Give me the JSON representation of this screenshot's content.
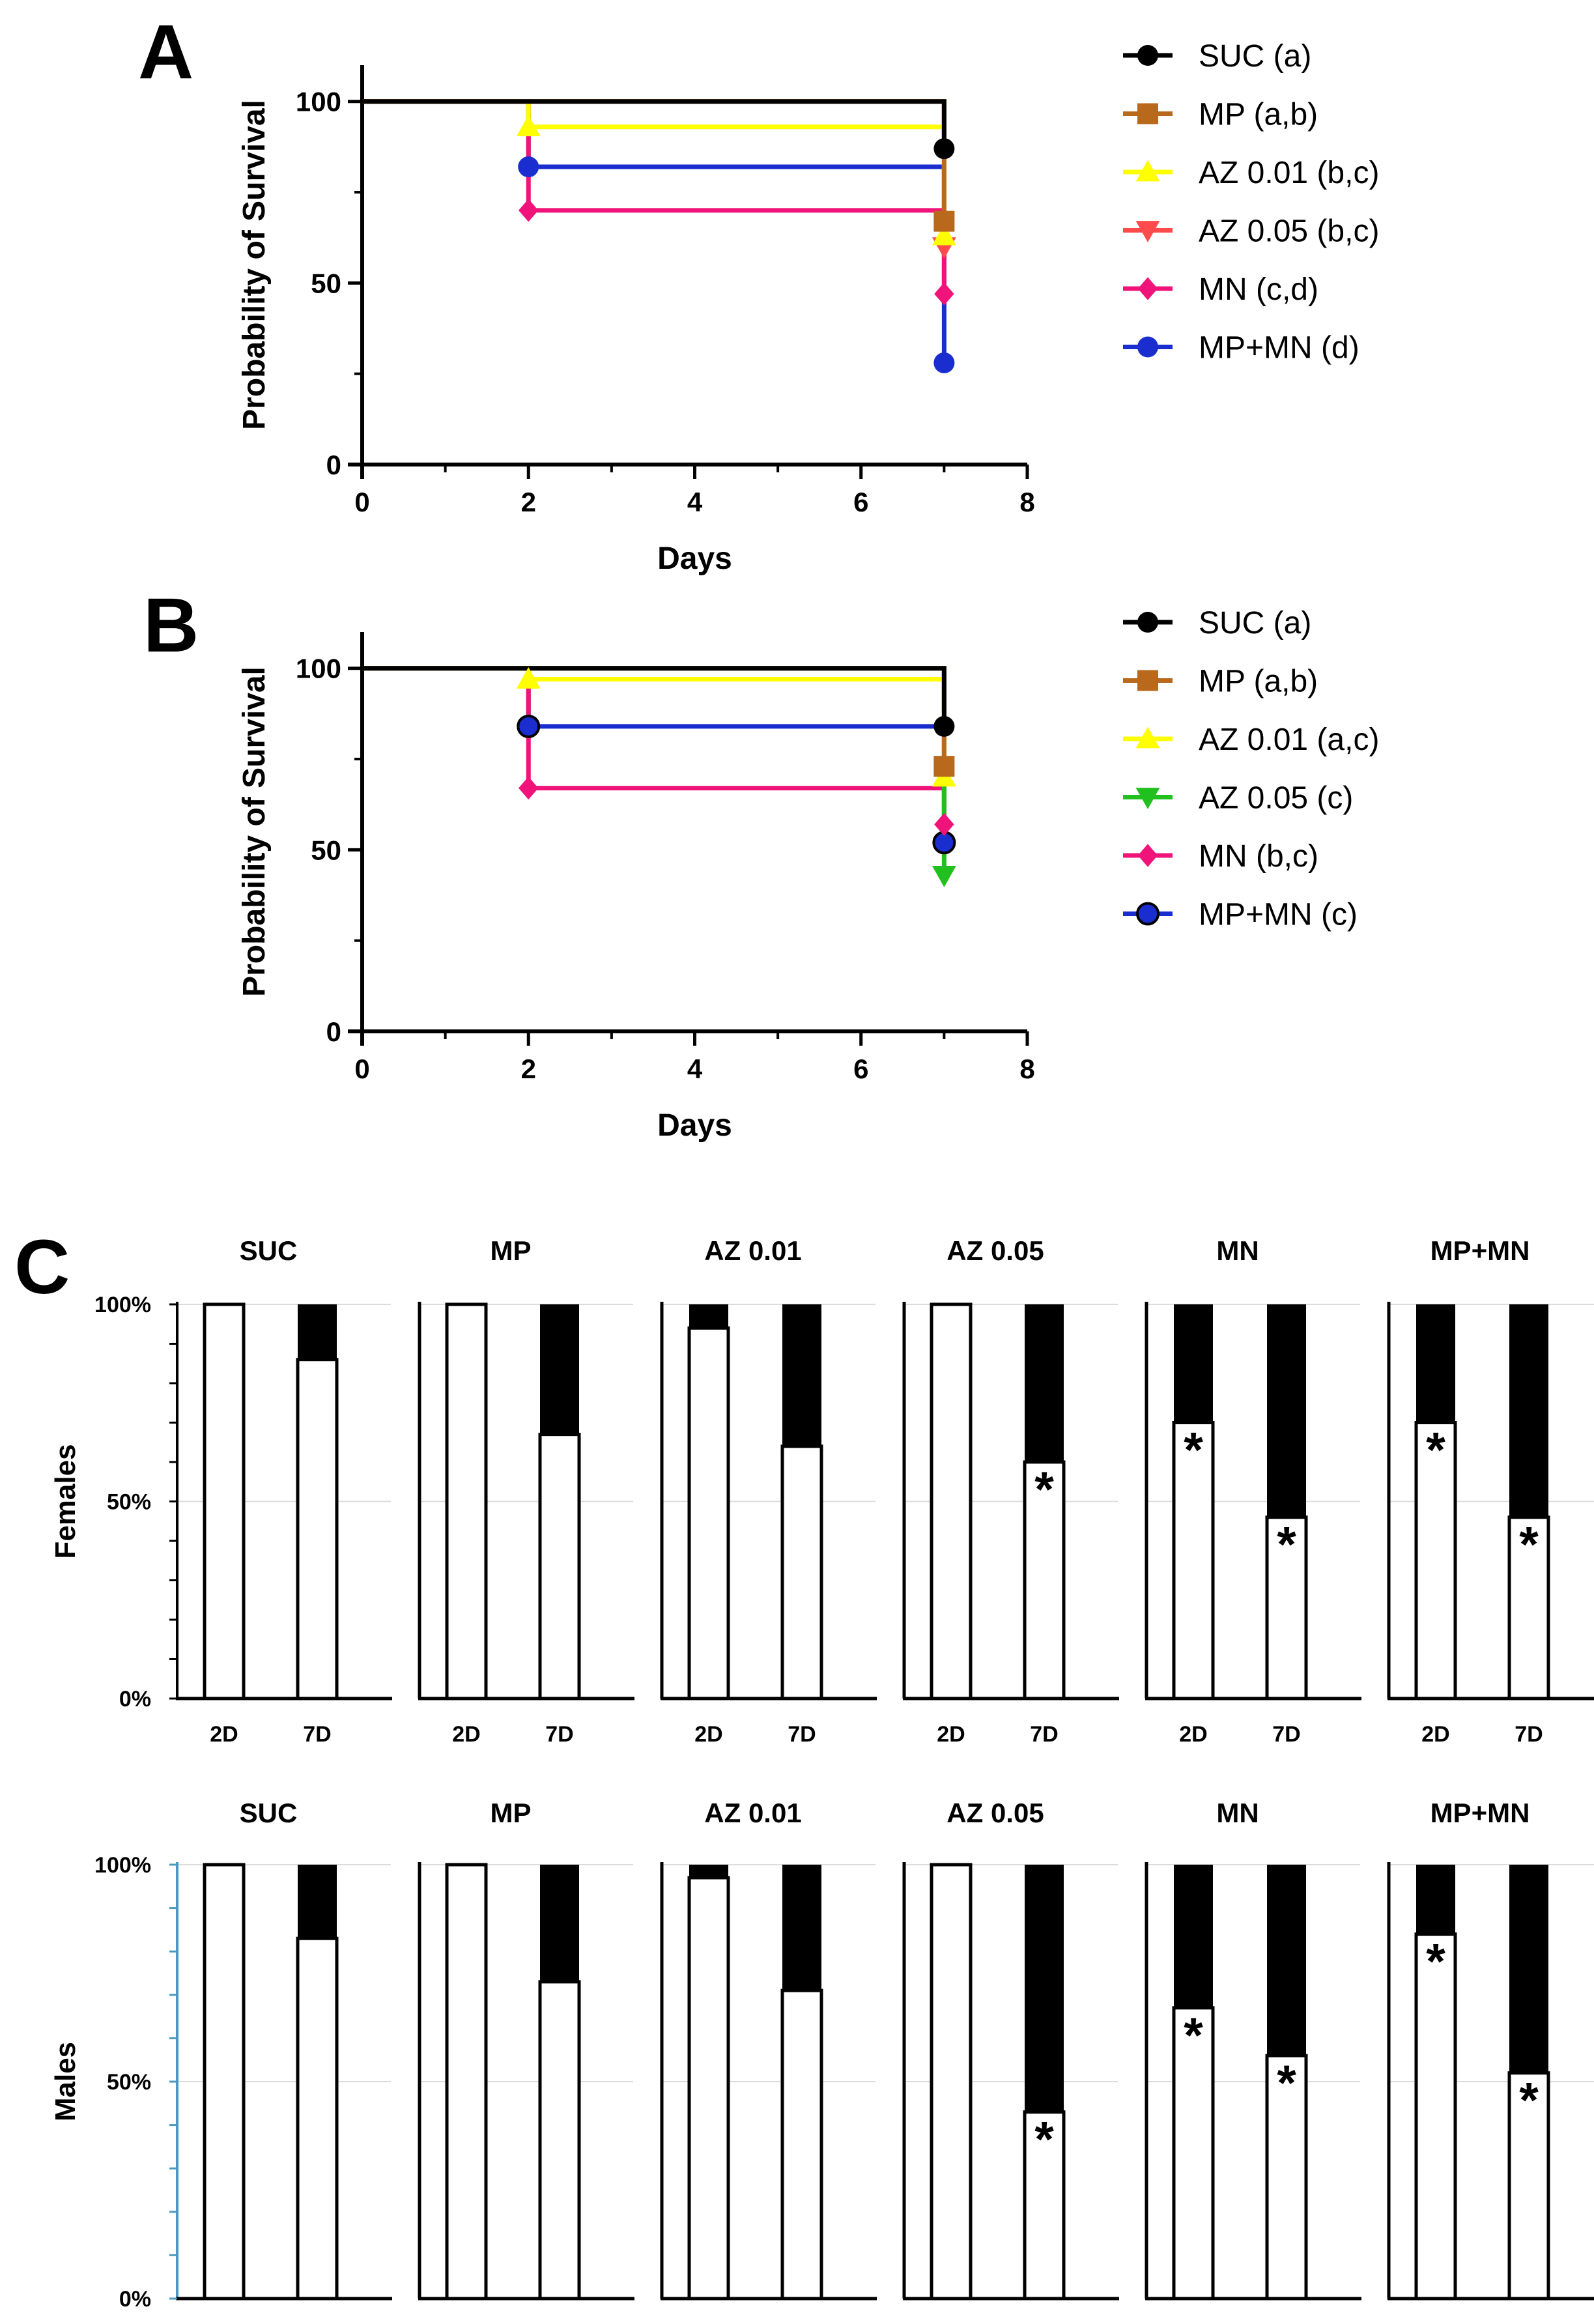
{
  "panels": {
    "A": {
      "label": "A"
    },
    "B": {
      "label": "B"
    },
    "C": {
      "label": "C"
    }
  },
  "colors": {
    "SUC": "#000000",
    "MP": "#b8691c",
    "AZ 0.01": "#ffff00",
    "AZ 0.05 red": "#ff4b4b",
    "AZ 0.05 green": "#22c01e",
    "MN": "#f0147a",
    "MP+MN": "#1a2ed0"
  },
  "chart_data": [
    {
      "id": "A",
      "type": "line",
      "subtype": "kaplan-meier",
      "title": "",
      "xlabel": "Days",
      "ylabel": "Probability of Survival",
      "xlim": [
        0,
        8
      ],
      "ylim": [
        0,
        110
      ],
      "xticks": [
        "0",
        "2",
        "4",
        "6",
        "8"
      ],
      "yticks": [
        "0",
        "50",
        "100"
      ],
      "legend_position": "right",
      "series": [
        {
          "name": "SUC",
          "legend": "SUC (a)",
          "marker": "circle",
          "color_key": "SUC",
          "x": [
            0,
            2,
            7
          ],
          "y": [
            100,
            100,
            87
          ]
        },
        {
          "name": "MP",
          "legend": "MP (a,b)",
          "marker": "square",
          "color_key": "MP",
          "x": [
            0,
            2,
            7
          ],
          "y": [
            100,
            100,
            67
          ]
        },
        {
          "name": "AZ 0.01",
          "legend": "AZ 0.01 (b,c)",
          "marker": "triangle-up",
          "color_key": "AZ 0.01",
          "x": [
            0,
            2,
            7
          ],
          "y": [
            100,
            93,
            63
          ]
        },
        {
          "name": "AZ 0.05",
          "legend": "AZ 0.05 (b,c)",
          "marker": "triangle-down",
          "color_key": "AZ 0.05 red",
          "x": [
            0,
            2,
            7
          ],
          "y": [
            100,
            100,
            60
          ]
        },
        {
          "name": "MN",
          "legend": "MN (c,d)",
          "marker": "diamond",
          "color_key": "MN",
          "x": [
            0,
            2,
            7
          ],
          "y": [
            100,
            70,
            47
          ]
        },
        {
          "name": "MP+MN",
          "legend": "MP+MN (d)",
          "marker": "circle",
          "color_key": "MP+MN",
          "x": [
            0,
            2,
            7
          ],
          "y": [
            100,
            82,
            28
          ]
        }
      ]
    },
    {
      "id": "B",
      "type": "line",
      "subtype": "kaplan-meier",
      "title": "",
      "xlabel": "Days",
      "ylabel": "Probability of Survival",
      "xlim": [
        0,
        8
      ],
      "ylim": [
        0,
        110
      ],
      "xticks": [
        "0",
        "2",
        "4",
        "6",
        "8"
      ],
      "yticks": [
        "0",
        "50",
        "100"
      ],
      "legend_position": "right",
      "series": [
        {
          "name": "SUC",
          "legend": "SUC (a)",
          "marker": "circle",
          "color_key": "SUC",
          "x": [
            0,
            2,
            7
          ],
          "y": [
            100,
            100,
            84
          ]
        },
        {
          "name": "MP",
          "legend": "MP (a,b)",
          "marker": "square",
          "color_key": "MP",
          "x": [
            0,
            2,
            7
          ],
          "y": [
            100,
            100,
            73
          ]
        },
        {
          "name": "AZ 0.01",
          "legend": "AZ 0.01 (a,c)",
          "marker": "triangle-up",
          "color_key": "AZ 0.01",
          "x": [
            0,
            2,
            7
          ],
          "y": [
            100,
            97,
            70
          ]
        },
        {
          "name": "AZ 0.05",
          "legend": "AZ 0.05 (c)",
          "marker": "triangle-down",
          "color_key": "AZ 0.05 green",
          "x": [
            0,
            2,
            7
          ],
          "y": [
            100,
            100,
            43
          ]
        },
        {
          "name": "MN",
          "legend": "MN (b,c)",
          "marker": "diamond",
          "color_key": "MN",
          "x": [
            0,
            2,
            7
          ],
          "y": [
            100,
            67,
            57
          ]
        },
        {
          "name": "MP+MN",
          "legend": "MP+MN (c)",
          "marker": "circle-outlined",
          "color_key": "MP+MN",
          "x": [
            0,
            2,
            7
          ],
          "y": [
            100,
            84,
            52
          ]
        }
      ]
    },
    {
      "id": "C-females",
      "type": "bar",
      "subtype": "stacked-100-percent",
      "row_label": "Females",
      "yticks": [
        "0%",
        "50%",
        "100%"
      ],
      "ylim": [
        0,
        100
      ],
      "categories": [
        "2D",
        "7D"
      ],
      "groups": [
        {
          "title": "SUC",
          "alive": [
            100,
            86
          ],
          "star": [
            false,
            false
          ]
        },
        {
          "title": "MP",
          "alive": [
            100,
            67
          ],
          "star": [
            false,
            false
          ]
        },
        {
          "title": "AZ 0.01",
          "alive": [
            94,
            64
          ],
          "star": [
            false,
            false
          ]
        },
        {
          "title": "AZ 0.05",
          "alive": [
            100,
            60
          ],
          "star": [
            false,
            true
          ]
        },
        {
          "title": "MN",
          "alive": [
            70,
            46
          ],
          "star": [
            true,
            true
          ]
        },
        {
          "title": "MP+MN",
          "alive": [
            70,
            46
          ],
          "star": [
            true,
            true
          ]
        }
      ],
      "star_symbol": "*"
    },
    {
      "id": "C-males",
      "type": "bar",
      "subtype": "stacked-100-percent",
      "row_label": "Males",
      "yticks": [
        "0%",
        "50%",
        "100%"
      ],
      "ylim": [
        0,
        100
      ],
      "categories": [
        "2D",
        "7D"
      ],
      "groups": [
        {
          "title": "SUC",
          "alive": [
            100,
            83
          ],
          "star": [
            false,
            false
          ]
        },
        {
          "title": "MP",
          "alive": [
            100,
            73
          ],
          "star": [
            false,
            false
          ]
        },
        {
          "title": "AZ 0.01",
          "alive": [
            97,
            71
          ],
          "star": [
            false,
            false
          ]
        },
        {
          "title": "AZ 0.05",
          "alive": [
            100,
            43
          ],
          "star": [
            false,
            true
          ]
        },
        {
          "title": "MN",
          "alive": [
            67,
            56
          ],
          "star": [
            true,
            true
          ]
        },
        {
          "title": "MP+MN",
          "alive": [
            84,
            52
          ],
          "star": [
            true,
            true
          ]
        }
      ],
      "star_symbol": "*"
    }
  ]
}
